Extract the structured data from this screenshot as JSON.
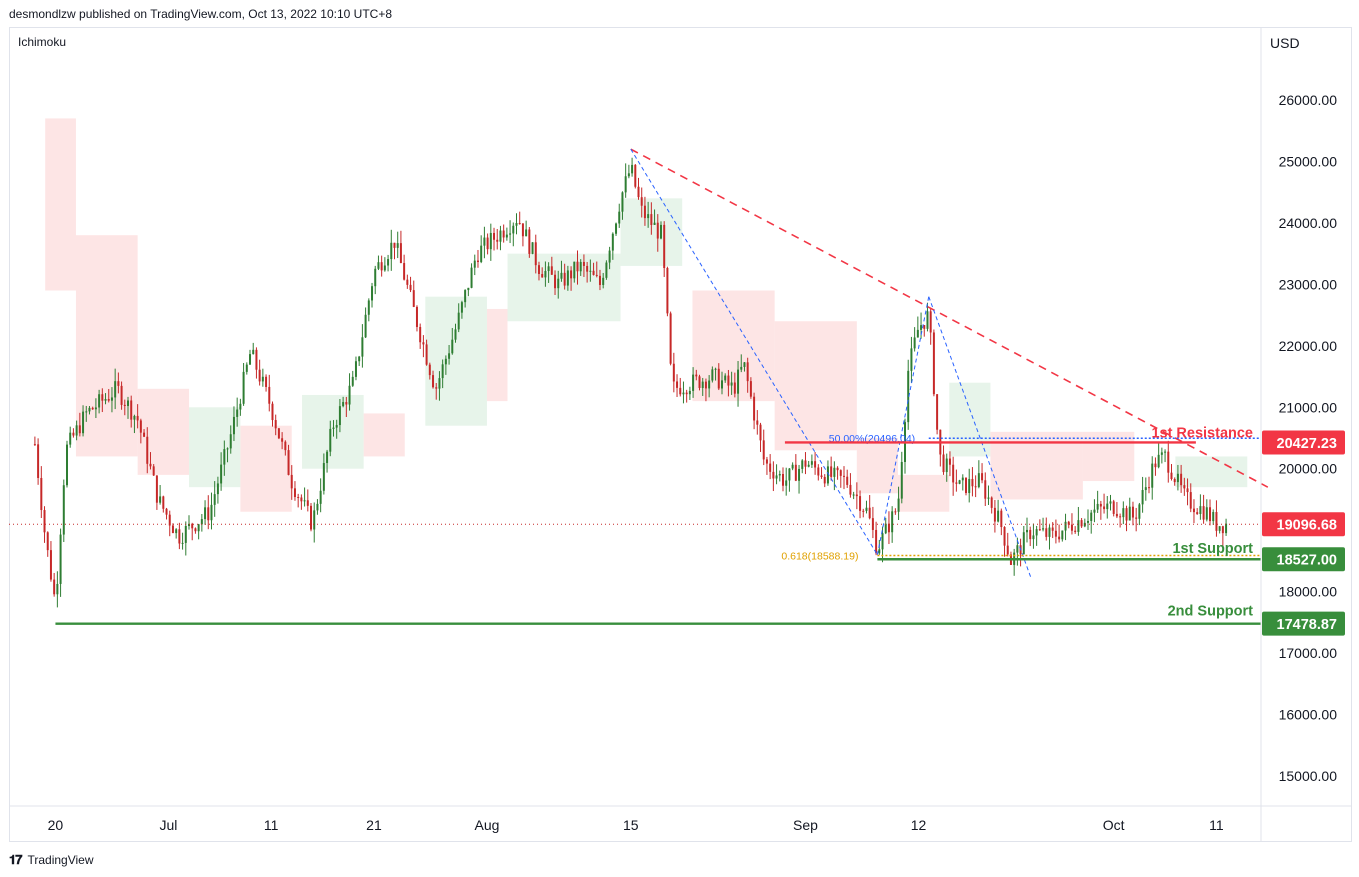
{
  "header": {
    "publisher_line": "desmondlzw published on TradingView.com, Oct 13, 2022 10:10 UTC+8"
  },
  "indicator_label": "Ichimoku",
  "currency": "USD",
  "footer": {
    "brand": "TradingView",
    "logo_glyph": "𝟏𝟕"
  },
  "colors": {
    "up": "#26a69a",
    "candle_up": "#2e7d32",
    "candle_down": "#c62828",
    "resistance": "#f23645",
    "support": "#388e3c",
    "fib": "#e0a100",
    "fib_blue": "#2962ff",
    "trend_red": "#f23645",
    "cloud_red": "#fde0e0",
    "cloud_green": "#e3f2e6"
  },
  "chart_data": {
    "type": "candlestick",
    "y_axis": {
      "ticks": [
        15000,
        16000,
        17000,
        18000,
        19000,
        20000,
        21000,
        22000,
        23000,
        24000,
        25000,
        26000
      ],
      "tick_labels": [
        "15000.00",
        "16000.00",
        "17000.00",
        "18000.00",
        "19000.00",
        "20000.00",
        "21000.00",
        "22000.00",
        "23000.00",
        "24000.00",
        "25000.00",
        "26000.00"
      ],
      "range": [
        14500,
        27000
      ]
    },
    "x_axis": {
      "range": [
        "2022-06-19",
        "2022-10-16"
      ],
      "ticks": [
        {
          "date": "2022-06-20",
          "label": "20"
        },
        {
          "date": "2022-07-01",
          "label": "Jul"
        },
        {
          "date": "2022-07-11",
          "label": "11"
        },
        {
          "date": "2022-07-21",
          "label": "21"
        },
        {
          "date": "2022-08-01",
          "label": "Aug"
        },
        {
          "date": "2022-08-15",
          "label": "15"
        },
        {
          "date": "2022-09-01",
          "label": "Sep"
        },
        {
          "date": "2022-09-12",
          "label": "12"
        },
        {
          "date": "2022-10-01",
          "label": "Oct"
        },
        {
          "date": "2022-10-11",
          "label": "11"
        }
      ]
    },
    "price_path": [
      [
        "2022-06-18",
        20400
      ],
      [
        "2022-06-19",
        18900
      ],
      [
        "2022-06-20",
        17800
      ],
      [
        "2022-06-21",
        20300
      ],
      [
        "2022-06-23",
        20900
      ],
      [
        "2022-06-26",
        21300
      ],
      [
        "2022-06-28",
        20800
      ],
      [
        "2022-06-30",
        19500
      ],
      [
        "2022-07-02",
        18900
      ],
      [
        "2022-07-05",
        19300
      ],
      [
        "2022-07-07",
        20500
      ],
      [
        "2022-07-09",
        21900
      ],
      [
        "2022-07-11",
        21000
      ],
      [
        "2022-07-13",
        19800
      ],
      [
        "2022-07-15",
        19100
      ],
      [
        "2022-07-17",
        20700
      ],
      [
        "2022-07-19",
        21400
      ],
      [
        "2022-07-21",
        23200
      ],
      [
        "2022-07-23",
        23700
      ],
      [
        "2022-07-25",
        22500
      ],
      [
        "2022-07-27",
        21300
      ],
      [
        "2022-07-29",
        22300
      ],
      [
        "2022-07-31",
        23500
      ],
      [
        "2022-08-02",
        23800
      ],
      [
        "2022-08-04",
        24100
      ],
      [
        "2022-08-06",
        23300
      ],
      [
        "2022-08-08",
        23000
      ],
      [
        "2022-08-10",
        23300
      ],
      [
        "2022-08-12",
        23000
      ],
      [
        "2022-08-14",
        24400
      ],
      [
        "2022-08-15",
        24900
      ],
      [
        "2022-08-16",
        24200
      ],
      [
        "2022-08-18",
        23800
      ],
      [
        "2022-08-19",
        21300
      ],
      [
        "2022-08-21",
        21400
      ],
      [
        "2022-08-23",
        21500
      ],
      [
        "2022-08-25",
        21300
      ],
      [
        "2022-08-26",
        21700
      ],
      [
        "2022-08-28",
        20100
      ],
      [
        "2022-08-30",
        19800
      ],
      [
        "2022-09-01",
        20100
      ],
      [
        "2022-09-03",
        19900
      ],
      [
        "2022-09-05",
        19800
      ],
      [
        "2022-09-07",
        19300
      ],
      [
        "2022-09-08",
        18700
      ],
      [
        "2022-09-10",
        19400
      ],
      [
        "2022-09-11",
        21600
      ],
      [
        "2022-09-12",
        22300
      ],
      [
        "2022-09-13",
        22500
      ],
      [
        "2022-09-14",
        20200
      ],
      [
        "2022-09-16",
        19700
      ],
      [
        "2022-09-18",
        19800
      ],
      [
        "2022-09-20",
        19100
      ],
      [
        "2022-09-21",
        18500
      ],
      [
        "2022-09-23",
        19000
      ],
      [
        "2022-09-25",
        18900
      ],
      [
        "2022-09-27",
        19100
      ],
      [
        "2022-09-29",
        19300
      ],
      [
        "2022-10-01",
        19400
      ],
      [
        "2022-10-03",
        19200
      ],
      [
        "2022-10-05",
        20100
      ],
      [
        "2022-10-06",
        20200
      ],
      [
        "2022-10-08",
        19500
      ],
      [
        "2022-10-10",
        19300
      ],
      [
        "2022-10-11",
        19100
      ],
      [
        "2022-10-12",
        19100
      ]
    ],
    "cloud": [
      {
        "from": "2022-06-19",
        "to": "2022-06-22",
        "top": 25700,
        "bottom": 22900,
        "color": "red"
      },
      {
        "from": "2022-06-22",
        "to": "2022-06-28",
        "top": 23800,
        "bottom": 20200,
        "color": "red"
      },
      {
        "from": "2022-06-28",
        "to": "2022-07-03",
        "top": 21300,
        "bottom": 19900,
        "color": "red"
      },
      {
        "from": "2022-07-03",
        "to": "2022-07-08",
        "top": 21000,
        "bottom": 19700,
        "color": "green"
      },
      {
        "from": "2022-07-08",
        "to": "2022-07-13",
        "top": 20700,
        "bottom": 19300,
        "color": "red"
      },
      {
        "from": "2022-07-14",
        "to": "2022-07-20",
        "top": 21200,
        "bottom": 20000,
        "color": "green"
      },
      {
        "from": "2022-07-20",
        "to": "2022-07-24",
        "top": 20900,
        "bottom": 20200,
        "color": "red"
      },
      {
        "from": "2022-07-26",
        "to": "2022-08-01",
        "top": 22800,
        "bottom": 20700,
        "color": "green"
      },
      {
        "from": "2022-08-01",
        "to": "2022-08-03",
        "top": 22600,
        "bottom": 21100,
        "color": "red"
      },
      {
        "from": "2022-08-03",
        "to": "2022-08-14",
        "top": 23500,
        "bottom": 22400,
        "color": "green"
      },
      {
        "from": "2022-08-14",
        "to": "2022-08-20",
        "top": 24400,
        "bottom": 23300,
        "color": "green"
      },
      {
        "from": "2022-08-21",
        "to": "2022-08-29",
        "top": 22900,
        "bottom": 21100,
        "color": "red"
      },
      {
        "from": "2022-08-29",
        "to": "2022-09-06",
        "top": 22400,
        "bottom": 20300,
        "color": "red"
      },
      {
        "from": "2022-09-06",
        "to": "2022-09-10",
        "top": 20500,
        "bottom": 19600,
        "color": "red"
      },
      {
        "from": "2022-09-10",
        "to": "2022-09-15",
        "top": 19900,
        "bottom": 19300,
        "color": "red"
      },
      {
        "from": "2022-09-15",
        "to": "2022-09-19",
        "top": 21400,
        "bottom": 20200,
        "color": "green"
      },
      {
        "from": "2022-09-19",
        "to": "2022-09-28",
        "top": 20600,
        "bottom": 19500,
        "color": "red"
      },
      {
        "from": "2022-09-28",
        "to": "2022-10-03",
        "top": 20600,
        "bottom": 19800,
        "color": "red"
      },
      {
        "from": "2022-10-07",
        "to": "2022-10-14",
        "top": 20200,
        "bottom": 19700,
        "color": "green"
      }
    ],
    "levels": [
      {
        "name": "1st Resistance",
        "value": 20427.23,
        "label": "20427.23",
        "color": "red",
        "from": "2022-08-30",
        "to": "2022-10-09"
      },
      {
        "name": "1st Support",
        "value": 18527.0,
        "label": "18527.00",
        "color": "green",
        "from": "2022-09-08",
        "to": "2022-10-16"
      },
      {
        "name": "2nd Support",
        "value": 17478.87,
        "label": "17478.87",
        "color": "green",
        "from": "2022-06-20",
        "to": "2022-10-16"
      }
    ],
    "current_price": {
      "value": 19096.68,
      "label": "19096.68"
    },
    "fib_levels": [
      {
        "label": "50.00%(20496.04)",
        "value": 20496.04,
        "from": "2022-09-13",
        "to": "2022-10-16",
        "color": "blue"
      },
      {
        "label": "0.618(18588.19)",
        "value": 18588.19,
        "from": "2022-09-08",
        "to": "2022-10-16",
        "color": "gold"
      }
    ],
    "trendline": {
      "from": [
        "2022-08-15",
        25200
      ],
      "to": [
        "2022-10-16",
        19700
      ],
      "style": "dashed",
      "color": "red"
    },
    "fib_paths": [
      [
        [
          "2022-08-15",
          25200
        ],
        [
          "2022-09-08",
          18600
        ]
      ],
      [
        [
          "2022-09-08",
          18600
        ],
        [
          "2022-09-13",
          22800
        ]
      ],
      [
        [
          "2022-09-13",
          22800
        ],
        [
          "2022-09-23",
          18200
        ]
      ]
    ],
    "annotations": [
      {
        "text": "1st Resistance",
        "color": "red"
      },
      {
        "text": "1st Support",
        "color": "green"
      },
      {
        "text": "2nd Support",
        "color": "green"
      }
    ]
  }
}
